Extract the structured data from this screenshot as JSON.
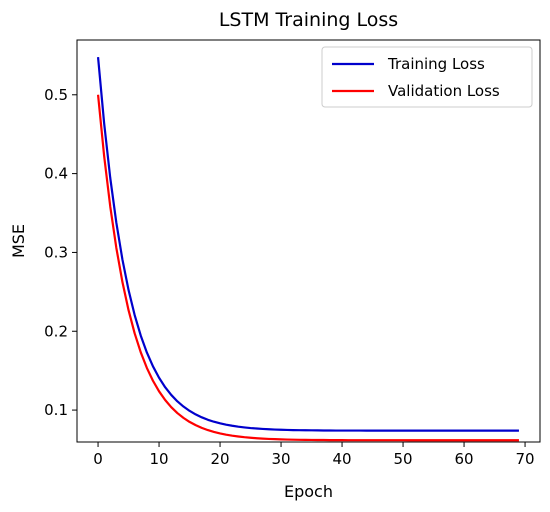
{
  "chart_data": {
    "type": "line",
    "title": "LSTM Training Loss",
    "xlabel": "Epoch",
    "ylabel": "MSE",
    "xlim": [
      -3.45,
      72.45
    ],
    "ylim": [
      0.0595,
      0.5695
    ],
    "xticks": [
      0,
      10,
      20,
      30,
      40,
      50,
      60,
      70
    ],
    "yticks": [
      0.1,
      0.2,
      0.3,
      0.4,
      0.5
    ],
    "ytick_labels": [
      "0.1",
      "0.2",
      "0.3",
      "0.4",
      "0.5"
    ],
    "grid": false,
    "legend_position": "top-right",
    "x": [
      0,
      1,
      2,
      3,
      4,
      5,
      6,
      7,
      8,
      9,
      10,
      11,
      12,
      13,
      14,
      15,
      16,
      17,
      18,
      19,
      20,
      21,
      22,
      23,
      24,
      25,
      26,
      27,
      28,
      29,
      30,
      31,
      32,
      33,
      34,
      35,
      36,
      37,
      38,
      39,
      40,
      41,
      42,
      43,
      44,
      45,
      46,
      47,
      48,
      49,
      50,
      51,
      52,
      53,
      54,
      55,
      56,
      57,
      58,
      59,
      60,
      61,
      62,
      63,
      64,
      65,
      66,
      67,
      68,
      69
    ],
    "series": [
      {
        "name": "Training Loss",
        "color": "#0000cc",
        "values": [
          0.5478,
          0.4637,
          0.3945,
          0.3376,
          0.2908,
          0.2523,
          0.2206,
          0.1945,
          0.1731,
          0.1555,
          0.141,
          0.129,
          0.1192,
          0.1111,
          0.1045,
          0.099,
          0.0945,
          0.0908,
          0.0877,
          0.0852,
          0.0832,
          0.0815,
          0.0801,
          0.0789,
          0.078,
          0.0772,
          0.0766,
          0.0761,
          0.0757,
          0.0753,
          0.075,
          0.0748,
          0.0746,
          0.0745,
          0.0744,
          0.0743,
          0.0742,
          0.0741,
          0.0741,
          0.074,
          0.074,
          0.074,
          0.074,
          0.074,
          0.0739,
          0.0739,
          0.0739,
          0.0739,
          0.0739,
          0.0739,
          0.0739,
          0.0739,
          0.0739,
          0.0739,
          0.0739,
          0.0739,
          0.0739,
          0.0739,
          0.0739,
          0.0739,
          0.0739,
          0.0739,
          0.0739,
          0.0739,
          0.0739,
          0.0739,
          0.0739,
          0.0739,
          0.0739,
          0.0739
        ]
      },
      {
        "name": "Validation Loss",
        "color": "#ff0000",
        "values": [
          0.5,
          0.4222,
          0.3582,
          0.3056,
          0.2623,
          0.2267,
          0.1974,
          0.1733,
          0.1535,
          0.1372,
          0.1238,
          0.1128,
          0.1037,
          0.0962,
          0.0901,
          0.085,
          0.0809,
          0.0774,
          0.0746,
          0.0723,
          0.0704,
          0.0688,
          0.0675,
          0.0665,
          0.0656,
          0.0649,
          0.0643,
          0.0638,
          0.0634,
          0.0631,
          0.0628,
          0.0626,
          0.0624,
          0.0623,
          0.0622,
          0.0621,
          0.062,
          0.062,
          0.0619,
          0.0619,
          0.0619,
          0.0618,
          0.0618,
          0.0618,
          0.0618,
          0.0618,
          0.0618,
          0.0618,
          0.0618,
          0.0618,
          0.0618,
          0.0617,
          0.0617,
          0.0617,
          0.0617,
          0.0617,
          0.0617,
          0.0617,
          0.0617,
          0.0617,
          0.0617,
          0.0617,
          0.0617,
          0.0617,
          0.0617,
          0.0617,
          0.0617,
          0.0617,
          0.0617,
          0.0617
        ]
      }
    ]
  }
}
